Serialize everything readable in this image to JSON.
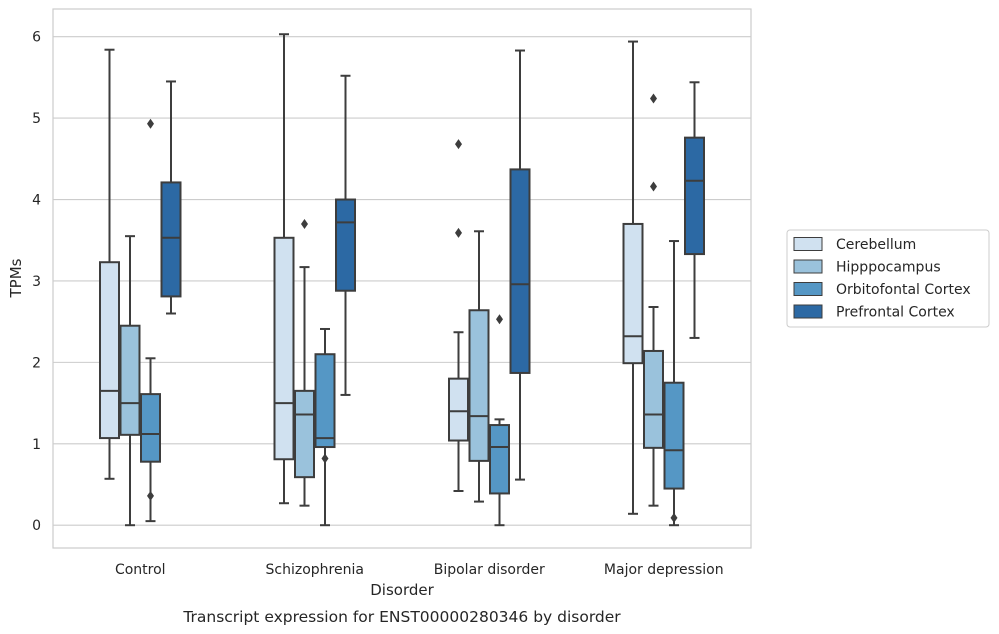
{
  "caption": "Transcript expression for ENST00000280346 by disorder",
  "chart_data": {
    "type": "boxplot",
    "title": "",
    "xlabel": "Disorder",
    "ylabel": "TPMs",
    "ylim": [
      -0.28,
      6.34
    ],
    "yticks": [
      0,
      1,
      2,
      3,
      4,
      5,
      6
    ],
    "grid": "horizontal",
    "legend_position": "right",
    "categories": [
      "Control",
      "Schizophrenia",
      "Bipolar disorder",
      "Major depression"
    ],
    "series": [
      {
        "name": "Cerebellum",
        "color": "#d0e1f0",
        "boxes": [
          {
            "whisker_low": 0.57,
            "q1": 1.07,
            "median": 1.65,
            "q3": 3.23,
            "whisker_high": 5.84,
            "outliers": []
          },
          {
            "whisker_low": 0.27,
            "q1": 0.81,
            "median": 1.5,
            "q3": 3.53,
            "whisker_high": 6.03,
            "outliers": []
          },
          {
            "whisker_low": 0.42,
            "q1": 1.04,
            "median": 1.4,
            "q3": 1.8,
            "whisker_high": 2.37,
            "outliers": [
              3.59,
              4.68
            ]
          },
          {
            "whisker_low": 0.14,
            "q1": 1.99,
            "median": 2.32,
            "q3": 3.7,
            "whisker_high": 5.94,
            "outliers": []
          }
        ]
      },
      {
        "name": "Hipppocampus",
        "color": "#9ac2dc",
        "boxes": [
          {
            "whisker_low": 0.0,
            "q1": 1.11,
            "median": 1.5,
            "q3": 2.45,
            "whisker_high": 3.55,
            "outliers": []
          },
          {
            "whisker_low": 0.24,
            "q1": 0.59,
            "median": 1.36,
            "q3": 1.65,
            "whisker_high": 3.17,
            "outliers": [
              3.7
            ]
          },
          {
            "whisker_low": 0.29,
            "q1": 0.79,
            "median": 1.34,
            "q3": 2.64,
            "whisker_high": 3.61,
            "outliers": []
          },
          {
            "whisker_low": 0.24,
            "q1": 0.95,
            "median": 1.36,
            "q3": 2.14,
            "whisker_high": 2.68,
            "outliers": [
              4.16,
              5.24
            ]
          }
        ]
      },
      {
        "name": "Orbitofontal Cortex",
        "color": "#5597c5",
        "boxes": [
          {
            "whisker_low": 0.05,
            "q1": 0.78,
            "median": 1.12,
            "q3": 1.61,
            "whisker_high": 2.05,
            "outliers": [
              0.36,
              4.93
            ]
          },
          {
            "whisker_low": 0.0,
            "q1": 0.96,
            "median": 1.07,
            "q3": 2.1,
            "whisker_high": 2.41,
            "outliers": [
              0.82
            ]
          },
          {
            "whisker_low": 0.0,
            "q1": 0.39,
            "median": 0.96,
            "q3": 1.23,
            "whisker_high": 1.3,
            "outliers": [
              2.53
            ]
          },
          {
            "whisker_low": 0.0,
            "q1": 0.45,
            "median": 0.92,
            "q3": 1.75,
            "whisker_high": 3.49,
            "outliers": [
              0.09
            ]
          }
        ]
      },
      {
        "name": "Prefrontal Cortex",
        "color": "#2c69a4",
        "boxes": [
          {
            "whisker_low": 2.6,
            "q1": 2.81,
            "median": 3.53,
            "q3": 4.21,
            "whisker_high": 5.45,
            "outliers": []
          },
          {
            "whisker_low": 1.6,
            "q1": 2.88,
            "median": 3.72,
            "q3": 4.0,
            "whisker_high": 5.52,
            "outliers": []
          },
          {
            "whisker_low": 0.56,
            "q1": 1.87,
            "median": 2.96,
            "q3": 4.37,
            "whisker_high": 5.83,
            "outliers": []
          },
          {
            "whisker_low": 2.3,
            "q1": 3.33,
            "median": 4.23,
            "q3": 4.76,
            "whisker_high": 5.44,
            "outliers": []
          }
        ]
      }
    ]
  },
  "colors": {
    "box_edge": "#3d3d3d",
    "grid": "#cccccc",
    "frame": "#cccccc",
    "text": "#262626"
  }
}
